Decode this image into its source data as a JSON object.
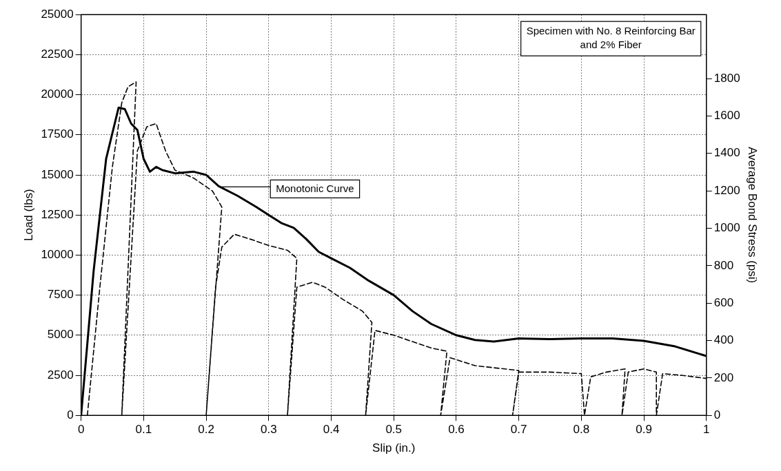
{
  "chart_data": {
    "type": "line",
    "xlabel": "Slip (in.)",
    "ylabel": "Load (lbs)",
    "y2label": "Average Bond Stress (psi)",
    "xlim": [
      0,
      1
    ],
    "xticks": [
      0,
      0.1,
      0.2,
      0.3,
      0.4,
      0.5,
      0.6,
      0.7,
      0.8,
      0.9,
      1
    ],
    "ylim": [
      0,
      25000
    ],
    "yticks": [
      0,
      2500,
      5000,
      7500,
      10000,
      12500,
      15000,
      17500,
      20000,
      22500,
      25000
    ],
    "y2lim": [
      0,
      2142
    ],
    "y2ticks": [
      0,
      200,
      400,
      600,
      800,
      1000,
      1200,
      1400,
      1600,
      1800
    ],
    "grid": true,
    "legend": false,
    "marker": "none",
    "series": [
      {
        "color": "#000000",
        "line_style": "solid",
        "x": [
          0,
          0.02,
          0.04,
          0.06,
          0.07,
          0.08,
          0.09,
          0.1,
          0.11,
          0.12,
          0.13,
          0.15,
          0.18,
          0.2,
          0.22,
          0.25,
          0.28,
          0.3,
          0.32,
          0.34,
          0.36,
          0.38,
          0.4,
          0.43,
          0.46,
          0.5,
          0.53,
          0.56,
          0.6,
          0.63,
          0.66,
          0.7,
          0.75,
          0.8,
          0.85,
          0.9,
          0.95,
          1
        ],
        "values": [
          0,
          9000,
          16000,
          19200,
          19100,
          18200,
          17800,
          16000,
          15200,
          15500,
          15300,
          15100,
          15200,
          15000,
          14300,
          13700,
          13000,
          12500,
          12000,
          11700,
          11000,
          10200,
          9800,
          9200,
          8400,
          7500,
          6500,
          5700,
          5000,
          4700,
          4600,
          4800,
          4750,
          4800,
          4800,
          4650,
          4300,
          3700
        ]
      },
      {
        "color": "#000000",
        "line_style": "dashed",
        "x": [
          0.01,
          0.03,
          0.05,
          0.065,
          0.075,
          0.088,
          0.065,
          0.09,
          0.105,
          0.12,
          0.135,
          0.15,
          0.18,
          0.21,
          0.225,
          0.2,
          0.215,
          0.225,
          0.245,
          0.27,
          0.3,
          0.33,
          0.345,
          0.33,
          0.345,
          0.37,
          0.39,
          0.42,
          0.45,
          0.465,
          0.455,
          0.47,
          0.5,
          0.53,
          0.56,
          0.585,
          0.575,
          0.59,
          0.63,
          0.7,
          0.69,
          0.7,
          0.75,
          0.8,
          0.805,
          0.815,
          0.84,
          0.87,
          0.865,
          0.875,
          0.9,
          0.92,
          0.92,
          0.93,
          0.96,
          1
        ],
        "values": [
          0,
          8000,
          15500,
          19500,
          20500,
          20800,
          0,
          16500,
          18000,
          18200,
          16500,
          15300,
          14800,
          14000,
          13000,
          0,
          8000,
          10500,
          11300,
          11000,
          10600,
          10300,
          9800,
          0,
          8000,
          8300,
          8000,
          7200,
          6500,
          5800,
          0,
          5300,
          5000,
          4600,
          4200,
          4000,
          0,
          3600,
          3100,
          2800,
          0,
          2700,
          2700,
          2600,
          0,
          2400,
          2700,
          2900,
          0,
          2700,
          2900,
          2700,
          0,
          2600,
          2500,
          2300
        ]
      }
    ],
    "annotations": [
      "Specimen with No. 8 Reinforcing Bar and 2% Fiber",
      "Monotonic Curve"
    ]
  }
}
